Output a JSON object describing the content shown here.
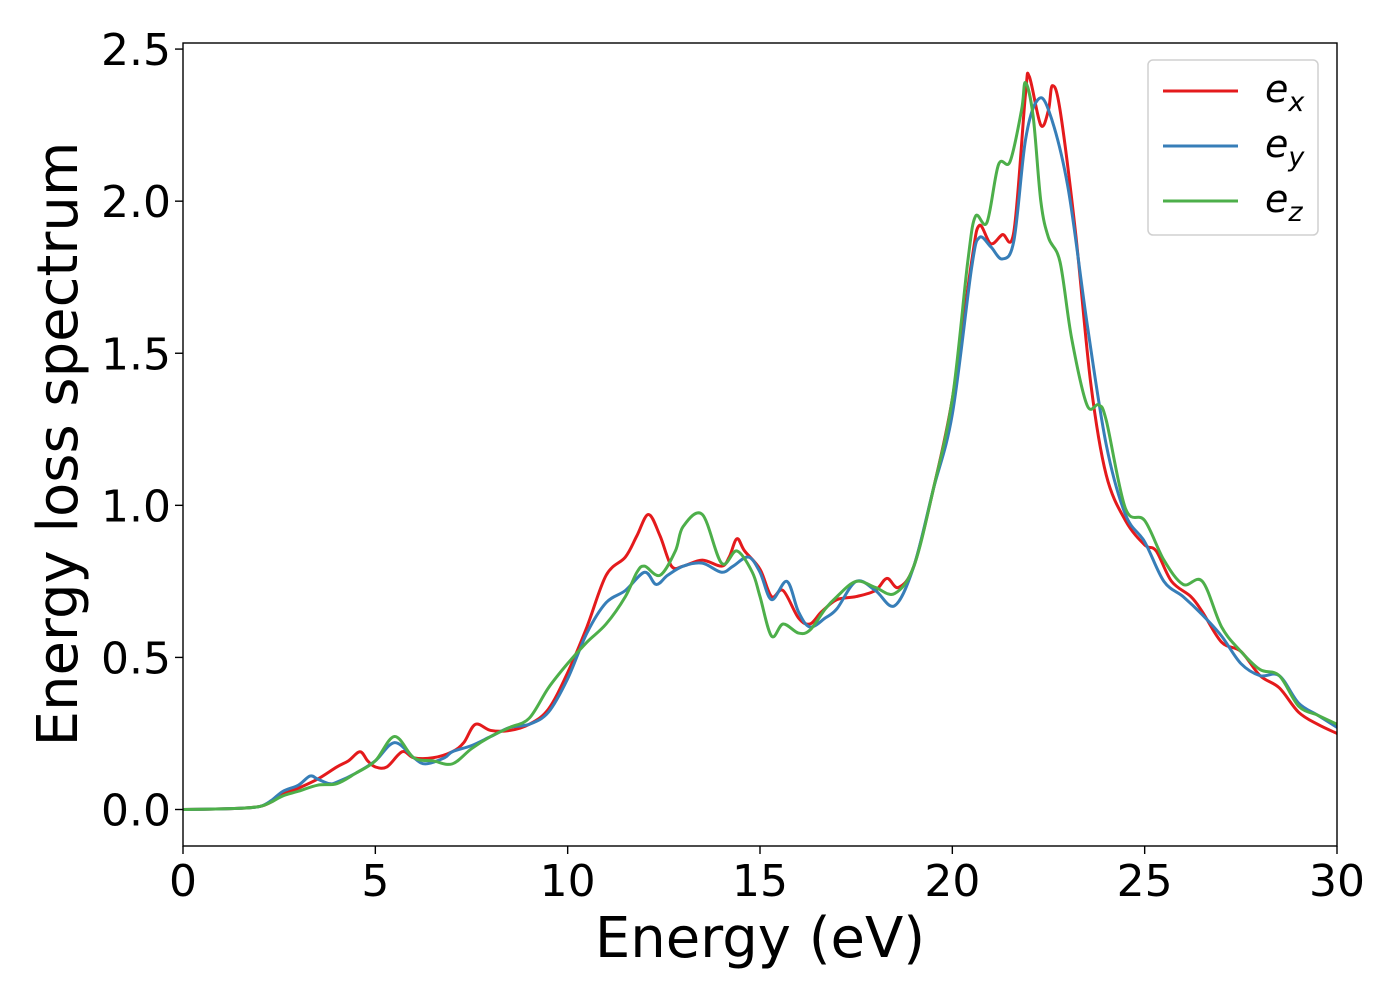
{
  "chart_data": {
    "type": "line",
    "xlabel": "Energy (eV)",
    "ylabel": "Energy loss spectrum",
    "xlim": [
      0,
      30
    ],
    "ylim": [
      -0.12,
      2.52
    ],
    "xticks": [
      "0",
      "5",
      "10",
      "15",
      "20",
      "25",
      "30"
    ],
    "yticks": [
      "0.0",
      "0.5",
      "1.0",
      "1.5",
      "2.0",
      "2.5"
    ],
    "grid": false,
    "legend_position": "top-right",
    "series": [
      {
        "name": "e_x",
        "legend_base": "e",
        "legend_sub": "x",
        "color": "#e41a1c",
        "points": [
          [
            0,
            0
          ],
          [
            1,
            0.002
          ],
          [
            1.5,
            0.004
          ],
          [
            2,
            0.01
          ],
          [
            2.3,
            0.025
          ],
          [
            2.6,
            0.05
          ],
          [
            3,
            0.07
          ],
          [
            3.5,
            0.1
          ],
          [
            4,
            0.14
          ],
          [
            4.3,
            0.16
          ],
          [
            4.6,
            0.19
          ],
          [
            4.8,
            0.16
          ],
          [
            5,
            0.14
          ],
          [
            5.3,
            0.14
          ],
          [
            5.7,
            0.19
          ],
          [
            6,
            0.17
          ],
          [
            6.5,
            0.17
          ],
          [
            7,
            0.19
          ],
          [
            7.3,
            0.22
          ],
          [
            7.6,
            0.28
          ],
          [
            8,
            0.26
          ],
          [
            8.5,
            0.26
          ],
          [
            9,
            0.28
          ],
          [
            9.5,
            0.33
          ],
          [
            10,
            0.45
          ],
          [
            10.5,
            0.6
          ],
          [
            11,
            0.77
          ],
          [
            11.5,
            0.83
          ],
          [
            11.8,
            0.9
          ],
          [
            12.1,
            0.97
          ],
          [
            12.4,
            0.9
          ],
          [
            12.7,
            0.8
          ],
          [
            13,
            0.8
          ],
          [
            13.5,
            0.82
          ],
          [
            14,
            0.8
          ],
          [
            14.2,
            0.83
          ],
          [
            14.4,
            0.89
          ],
          [
            14.6,
            0.85
          ],
          [
            15,
            0.79
          ],
          [
            15.3,
            0.7
          ],
          [
            15.6,
            0.72
          ],
          [
            16,
            0.63
          ],
          [
            16.3,
            0.61
          ],
          [
            16.6,
            0.65
          ],
          [
            17,
            0.69
          ],
          [
            17.5,
            0.7
          ],
          [
            18,
            0.72
          ],
          [
            18.3,
            0.76
          ],
          [
            18.6,
            0.73
          ],
          [
            19,
            0.8
          ],
          [
            19.5,
            1.05
          ],
          [
            20,
            1.35
          ],
          [
            20.5,
            1.8
          ],
          [
            20.7,
            1.92
          ],
          [
            21,
            1.86
          ],
          [
            21.3,
            1.89
          ],
          [
            21.6,
            1.9
          ],
          [
            21.9,
            2.35
          ],
          [
            22,
            2.41
          ],
          [
            22.3,
            2.25
          ],
          [
            22.5,
            2.3
          ],
          [
            22.6,
            2.38
          ],
          [
            22.8,
            2.3
          ],
          [
            23.2,
            1.9
          ],
          [
            23.6,
            1.4
          ],
          [
            24,
            1.1
          ],
          [
            24.5,
            0.95
          ],
          [
            25,
            0.87
          ],
          [
            25.3,
            0.85
          ],
          [
            25.7,
            0.75
          ],
          [
            26.2,
            0.7
          ],
          [
            26.5,
            0.65
          ],
          [
            27,
            0.55
          ],
          [
            27.5,
            0.52
          ],
          [
            28,
            0.44
          ],
          [
            28.5,
            0.4
          ],
          [
            29,
            0.32
          ],
          [
            29.5,
            0.28
          ],
          [
            30,
            0.25
          ]
        ]
      },
      {
        "name": "e_y",
        "legend_base": "e",
        "legend_sub": "y",
        "color": "#377eb8",
        "points": [
          [
            0,
            0
          ],
          [
            1,
            0.002
          ],
          [
            1.5,
            0.004
          ],
          [
            2,
            0.01
          ],
          [
            2.3,
            0.03
          ],
          [
            2.6,
            0.06
          ],
          [
            3,
            0.08
          ],
          [
            3.3,
            0.11
          ],
          [
            3.5,
            0.1
          ],
          [
            3.8,
            0.085
          ],
          [
            4,
            0.09
          ],
          [
            4.5,
            0.12
          ],
          [
            5,
            0.16
          ],
          [
            5.5,
            0.22
          ],
          [
            6,
            0.17
          ],
          [
            6.3,
            0.15
          ],
          [
            6.8,
            0.17
          ],
          [
            7,
            0.19
          ],
          [
            7.5,
            0.21
          ],
          [
            8,
            0.24
          ],
          [
            8.5,
            0.27
          ],
          [
            9,
            0.28
          ],
          [
            9.5,
            0.32
          ],
          [
            10,
            0.43
          ],
          [
            10.5,
            0.58
          ],
          [
            11,
            0.68
          ],
          [
            11.5,
            0.72
          ],
          [
            12,
            0.78
          ],
          [
            12.3,
            0.74
          ],
          [
            12.6,
            0.77
          ],
          [
            13,
            0.8
          ],
          [
            13.5,
            0.81
          ],
          [
            14,
            0.78
          ],
          [
            14.3,
            0.8
          ],
          [
            14.7,
            0.83
          ],
          [
            15,
            0.78
          ],
          [
            15.3,
            0.69
          ],
          [
            15.7,
            0.75
          ],
          [
            16,
            0.65
          ],
          [
            16.3,
            0.6
          ],
          [
            16.7,
            0.63
          ],
          [
            17,
            0.66
          ],
          [
            17.5,
            0.75
          ],
          [
            18,
            0.72
          ],
          [
            18.5,
            0.67
          ],
          [
            19,
            0.8
          ],
          [
            19.5,
            1.05
          ],
          [
            20,
            1.3
          ],
          [
            20.5,
            1.78
          ],
          [
            20.7,
            1.88
          ],
          [
            21,
            1.85
          ],
          [
            21.3,
            1.81
          ],
          [
            21.6,
            1.87
          ],
          [
            21.9,
            2.2
          ],
          [
            22.2,
            2.33
          ],
          [
            22.5,
            2.3
          ],
          [
            23,
            2.05
          ],
          [
            23.5,
            1.6
          ],
          [
            24,
            1.2
          ],
          [
            24.5,
            0.97
          ],
          [
            25,
            0.88
          ],
          [
            25.5,
            0.75
          ],
          [
            26,
            0.7
          ],
          [
            26.5,
            0.64
          ],
          [
            27,
            0.57
          ],
          [
            27.5,
            0.48
          ],
          [
            28,
            0.44
          ],
          [
            28.5,
            0.44
          ],
          [
            29,
            0.35
          ],
          [
            29.5,
            0.31
          ],
          [
            30,
            0.27
          ]
        ]
      },
      {
        "name": "e_z",
        "legend_base": "e",
        "legend_sub": "z",
        "color": "#4daf4a",
        "points": [
          [
            0,
            0
          ],
          [
            1,
            0.002
          ],
          [
            1.5,
            0.004
          ],
          [
            2,
            0.01
          ],
          [
            2.3,
            0.025
          ],
          [
            2.6,
            0.045
          ],
          [
            3,
            0.06
          ],
          [
            3.5,
            0.08
          ],
          [
            4,
            0.085
          ],
          [
            4.5,
            0.12
          ],
          [
            5,
            0.16
          ],
          [
            5.5,
            0.24
          ],
          [
            6,
            0.17
          ],
          [
            6.5,
            0.16
          ],
          [
            7,
            0.15
          ],
          [
            7.5,
            0.2
          ],
          [
            8,
            0.24
          ],
          [
            8.5,
            0.27
          ],
          [
            9,
            0.3
          ],
          [
            9.5,
            0.4
          ],
          [
            10,
            0.48
          ],
          [
            10.5,
            0.55
          ],
          [
            11,
            0.61
          ],
          [
            11.5,
            0.7
          ],
          [
            11.8,
            0.78
          ],
          [
            12,
            0.8
          ],
          [
            12.4,
            0.77
          ],
          [
            12.8,
            0.85
          ],
          [
            13,
            0.93
          ],
          [
            13.5,
            0.97
          ],
          [
            14,
            0.81
          ],
          [
            14.4,
            0.85
          ],
          [
            14.8,
            0.78
          ],
          [
            15,
            0.7
          ],
          [
            15.3,
            0.57
          ],
          [
            15.6,
            0.61
          ],
          [
            16,
            0.58
          ],
          [
            16.3,
            0.59
          ],
          [
            16.7,
            0.66
          ],
          [
            17,
            0.7
          ],
          [
            17.5,
            0.75
          ],
          [
            18,
            0.73
          ],
          [
            18.5,
            0.71
          ],
          [
            19,
            0.8
          ],
          [
            19.5,
            1.05
          ],
          [
            20,
            1.35
          ],
          [
            20.4,
            1.8
          ],
          [
            20.6,
            1.95
          ],
          [
            20.9,
            1.93
          ],
          [
            21.2,
            2.12
          ],
          [
            21.5,
            2.13
          ],
          [
            21.8,
            2.3
          ],
          [
            21.9,
            2.39
          ],
          [
            22.1,
            2.28
          ],
          [
            22.3,
            2.0
          ],
          [
            22.5,
            1.88
          ],
          [
            22.8,
            1.8
          ],
          [
            23.1,
            1.55
          ],
          [
            23.5,
            1.33
          ],
          [
            23.8,
            1.33
          ],
          [
            24,
            1.28
          ],
          [
            24.5,
            0.99
          ],
          [
            25,
            0.95
          ],
          [
            25.5,
            0.82
          ],
          [
            26,
            0.74
          ],
          [
            26.5,
            0.75
          ],
          [
            27,
            0.6
          ],
          [
            27.5,
            0.52
          ],
          [
            28,
            0.46
          ],
          [
            28.5,
            0.44
          ],
          [
            29,
            0.34
          ],
          [
            29.5,
            0.31
          ],
          [
            30,
            0.28
          ]
        ]
      }
    ]
  }
}
